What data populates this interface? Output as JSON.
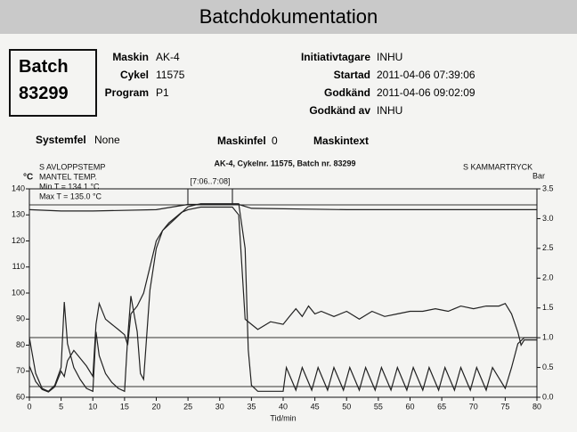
{
  "header": {
    "title": "Batchdokumentation"
  },
  "batch": {
    "label": "Batch",
    "number": "83299"
  },
  "fields_left": [
    {
      "label": "Maskin",
      "value": "AK-4"
    },
    {
      "label": "Cykel",
      "value": "11575"
    },
    {
      "label": "Program",
      "value": "P1"
    }
  ],
  "fields_right": [
    {
      "label": "Initiativtagare",
      "value": "INHU"
    },
    {
      "label": "Startad",
      "value": "2011-04-06 07:39:06"
    },
    {
      "label": "Godkänd",
      "value": "2011-04-06 09:02:09"
    },
    {
      "label": "Godkänd av",
      "value": "INHU"
    }
  ],
  "status": {
    "systemfel_label": "Systemfel",
    "systemfel": "None",
    "maskinfel_label": "Maskinfel",
    "maskinfel": "0",
    "maskintext_label": "Maskintext"
  },
  "chart_data": {
    "type": "line",
    "title": "AK-4, Cykelnr. 11575, Batch nr. 83299",
    "y_unit": "°C",
    "y2_unit": "Bar",
    "x_label": "Tid/min",
    "annotation": "[7:06..7:08]",
    "left_legend": [
      "S AVLOPPSTEMP",
      "MANTEL TEMP.",
      "Min T = 134.1 °C",
      "Max T = 135.0 °C"
    ],
    "xlim": [
      0,
      80
    ],
    "xticks": [
      0,
      5,
      10,
      15,
      20,
      25,
      30,
      35,
      40,
      45,
      50,
      55,
      60,
      65,
      70,
      75,
      80
    ],
    "ylim": [
      60,
      140
    ],
    "yticks": [
      60,
      70,
      80,
      90,
      100,
      110,
      120,
      130,
      140
    ],
    "y2lim": [
      0,
      3.5
    ],
    "y2ticks": [
      {
        "value": 0,
        "label": "0.0"
      },
      0.5,
      {
        "value": 1,
        "label": "1.0"
      },
      1.5,
      {
        "value": 2,
        "label": "2.0"
      },
      2.5,
      {
        "value": 3,
        "label": "3.0"
      },
      3.5
    ],
    "series": [
      {
        "name": "S AVLOPPSTEMP",
        "color": "#222",
        "x": [
          0,
          1,
          2,
          3,
          4,
          5,
          5.5,
          6,
          7,
          8,
          9,
          10,
          10.5,
          11,
          12,
          13,
          14,
          15,
          15.5,
          16,
          17,
          18,
          19,
          20,
          21,
          22,
          23,
          24,
          25,
          27,
          30,
          32,
          33,
          34,
          35,
          36,
          38,
          40,
          41,
          42,
          43,
          44,
          45,
          46,
          48,
          50,
          52,
          54,
          56,
          58,
          60,
          62,
          64,
          66,
          68,
          70,
          72,
          74,
          75,
          76,
          77,
          77.5,
          78,
          80
        ],
        "values": [
          72,
          66,
          63,
          62,
          64,
          70,
          68,
          74,
          78,
          75,
          72,
          68,
          88,
          96,
          90,
          88,
          86,
          84,
          80,
          92,
          95,
          100,
          110,
          120,
          124,
          127,
          129,
          131,
          132,
          133,
          133,
          133,
          130,
          90,
          88,
          86,
          89,
          88,
          91,
          94,
          91,
          95,
          92,
          93,
          91,
          93,
          90,
          93,
          91,
          92,
          93,
          93,
          94,
          93,
          95,
          94,
          95,
          95,
          96,
          92,
          85,
          80,
          82,
          82
        ]
      },
      {
        "name": "MANTEL TEMP.",
        "color": "#222",
        "x": [
          0,
          5,
          10,
          20,
          25,
          33,
          35,
          50,
          80
        ],
        "values": [
          132,
          131.5,
          131.5,
          132,
          134,
          134,
          132.5,
          132,
          132
        ]
      },
      {
        "name": "S KAMMARTRYCK",
        "color": "#222",
        "axis": "y2",
        "x": [
          0,
          1,
          2,
          3,
          4,
          5,
          5.5,
          6,
          7,
          8,
          9,
          10,
          10.5,
          11,
          12,
          13,
          14,
          15,
          15.5,
          16,
          17,
          17.5,
          18,
          19,
          20,
          21,
          22,
          23,
          24,
          25,
          27,
          30,
          33,
          34,
          34.5,
          35,
          36,
          40,
          40.5,
          42,
          43,
          44.5,
          45.5,
          47,
          48,
          49.5,
          50.5,
          52,
          53,
          54.5,
          55.5,
          57,
          58,
          59.5,
          60.5,
          62,
          63,
          64.5,
          65.5,
          67,
          68,
          69.5,
          70.5,
          72,
          73,
          75,
          76,
          77,
          78,
          80
        ],
        "values": [
          1.0,
          0.4,
          0.15,
          0.1,
          0.2,
          0.5,
          1.6,
          0.9,
          0.5,
          0.3,
          0.15,
          0.1,
          1.1,
          0.7,
          0.4,
          0.25,
          0.15,
          0.1,
          1.0,
          1.7,
          1.1,
          0.4,
          0.3,
          1.8,
          2.5,
          2.8,
          2.9,
          3.0,
          3.1,
          3.2,
          3.25,
          3.25,
          3.25,
          2.5,
          0.8,
          0.2,
          0.1,
          0.1,
          0.5,
          0.12,
          0.5,
          0.12,
          0.5,
          0.12,
          0.5,
          0.12,
          0.5,
          0.12,
          0.5,
          0.12,
          0.5,
          0.12,
          0.5,
          0.12,
          0.5,
          0.12,
          0.5,
          0.12,
          0.5,
          0.12,
          0.5,
          0.12,
          0.5,
          0.12,
          0.5,
          0.15,
          0.5,
          0.9,
          1.0,
          1.0
        ]
      }
    ]
  }
}
